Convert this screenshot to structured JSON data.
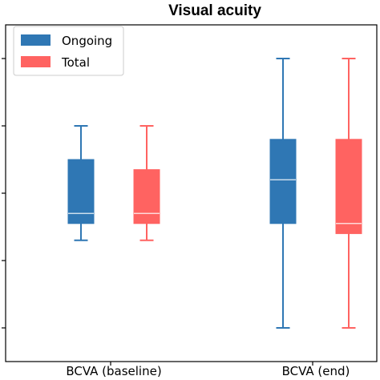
{
  "chart_data": {
    "type": "box",
    "title": "Visual acuity",
    "xlabel": "",
    "ylabel": "",
    "categories": [
      "BCVA (baseline)",
      "BCVA (end)"
    ],
    "ylim": [
      0,
      1.0
    ],
    "yticks": [
      0.1,
      0.3,
      0.5,
      0.7,
      0.9
    ],
    "ytick_labels": [],
    "grid": false,
    "legend_position": "top-left",
    "series": [
      {
        "name": "Ongoing",
        "color": "#2f77b4",
        "median_color": "#ffffff",
        "boxes": [
          {
            "whisker_low": 0.36,
            "q1": 0.41,
            "median": 0.44,
            "q3": 0.6,
            "whisker_high": 0.7
          },
          {
            "whisker_low": 0.1,
            "q1": 0.41,
            "median": 0.54,
            "q3": 0.66,
            "whisker_high": 0.9
          }
        ]
      },
      {
        "name": "Total",
        "color": "#ff6361",
        "median_color": "#ffffff",
        "boxes": [
          {
            "whisker_low": 0.36,
            "q1": 0.41,
            "median": 0.44,
            "q3": 0.57,
            "whisker_high": 0.7
          },
          {
            "whisker_low": 0.1,
            "q1": 0.38,
            "median": 0.41,
            "q3": 0.66,
            "whisker_high": 0.9
          }
        ]
      }
    ]
  }
}
